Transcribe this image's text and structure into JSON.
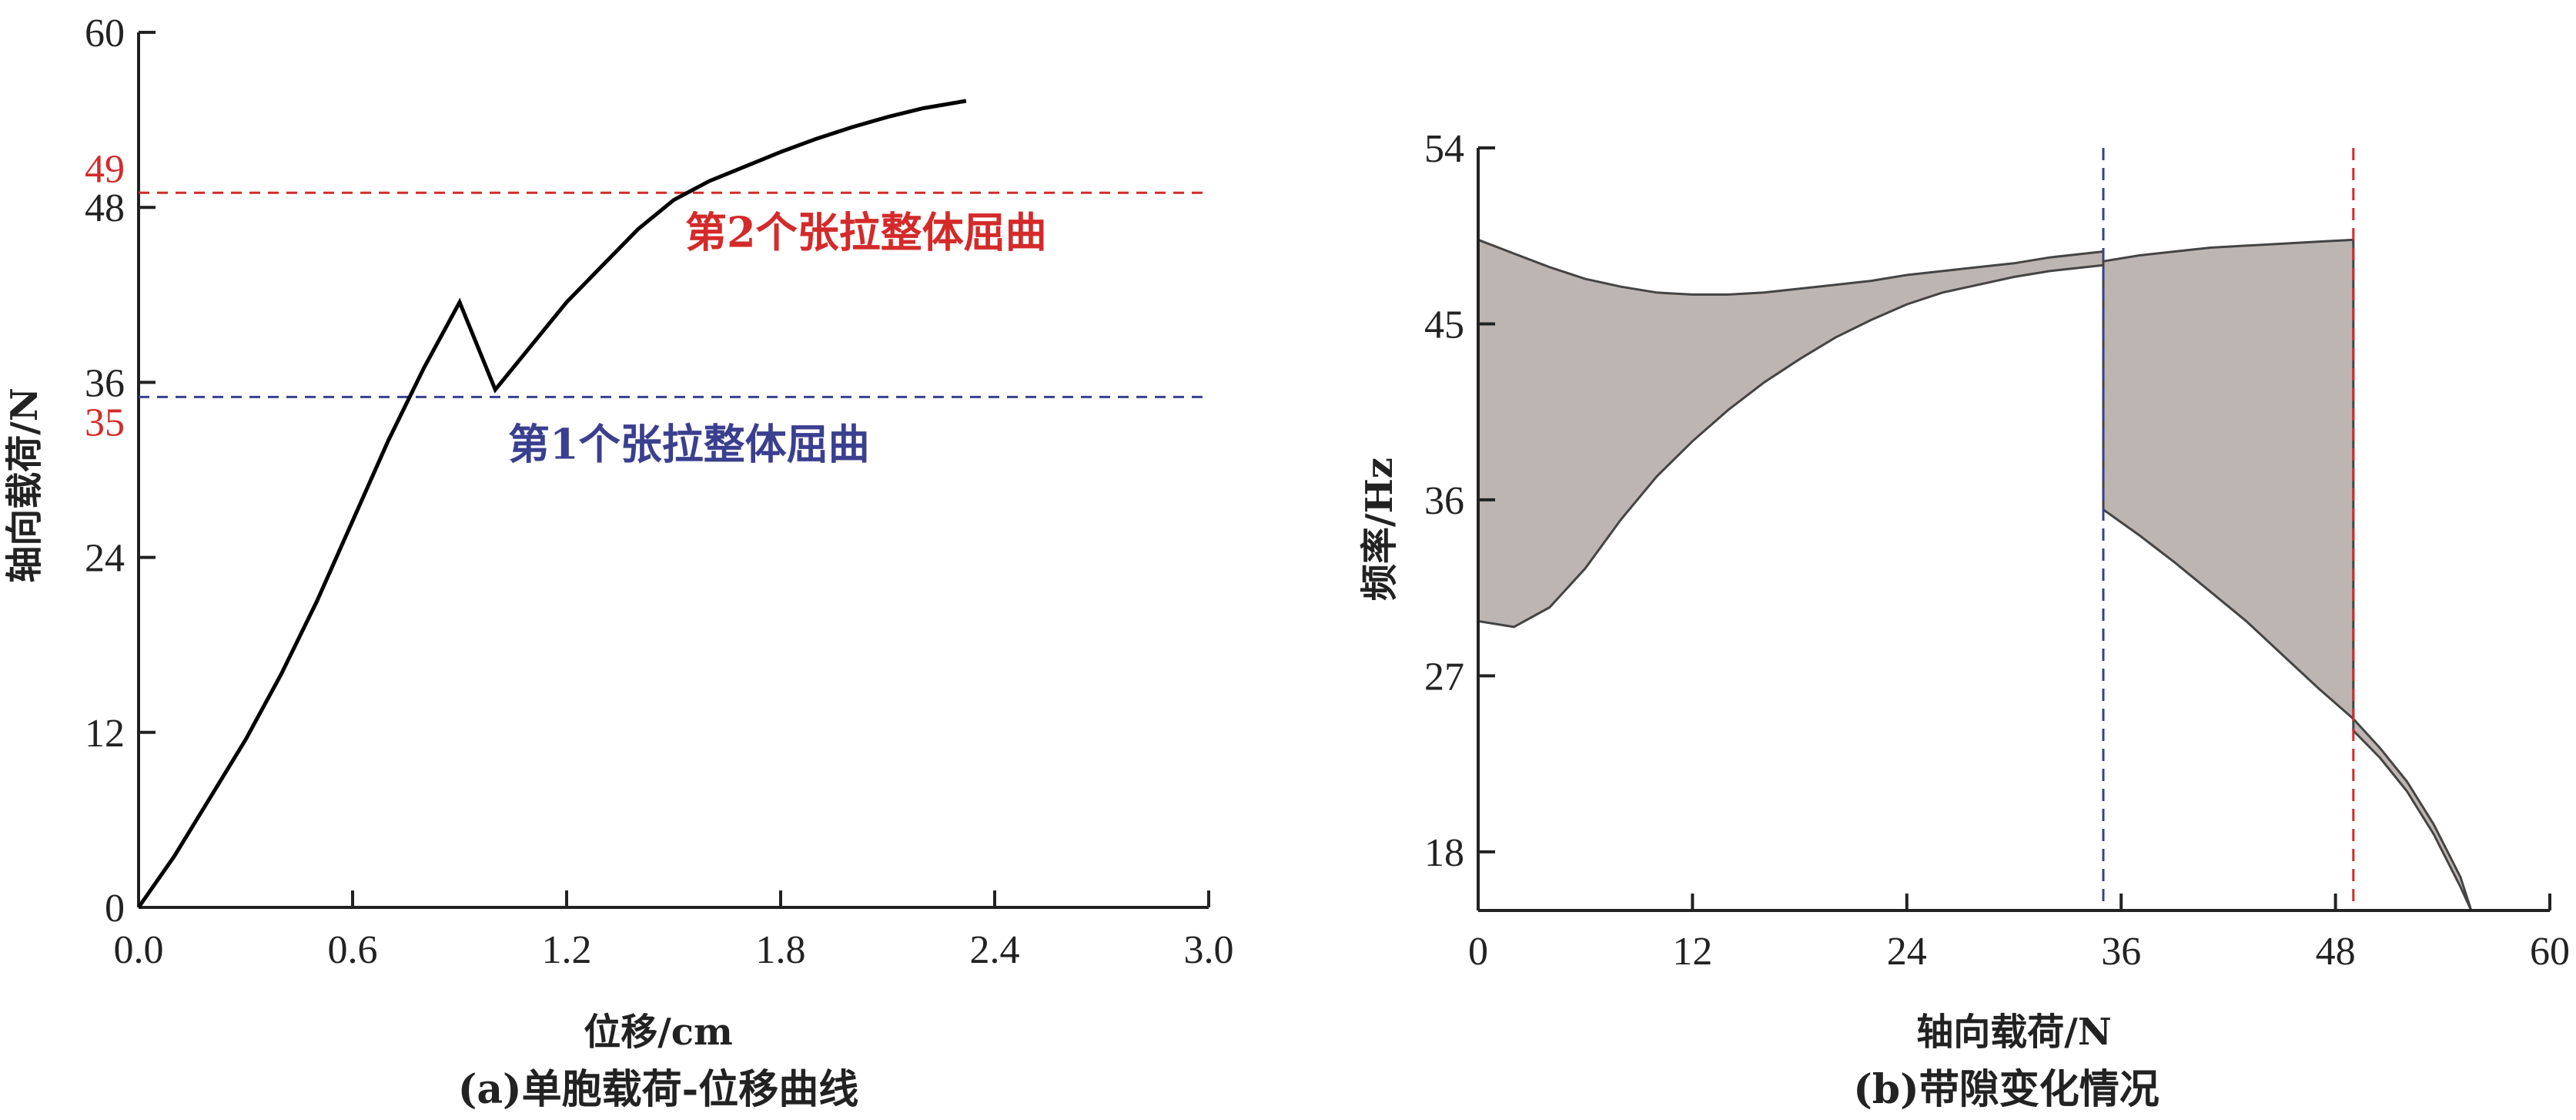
{
  "chart_data": [
    {
      "type": "line",
      "xlabel": "位移/cm",
      "ylabel": "轴向载荷/N",
      "caption": "(a)单胞载荷-位移曲线",
      "xlim": [
        0.0,
        3.0
      ],
      "ylim": [
        0,
        60
      ],
      "xticks": [
        "0.0",
        "0.6",
        "1.2",
        "1.8",
        "2.4",
        "3.0"
      ],
      "yticks": [
        "0",
        "12",
        "24",
        "36",
        "48",
        "60"
      ],
      "series": [
        {
          "x": [
            0.0,
            0.1,
            0.2,
            0.3,
            0.4,
            0.5,
            0.6,
            0.7,
            0.8,
            0.9,
            1.0,
            1.1,
            1.2,
            1.3,
            1.4,
            1.5,
            1.6,
            1.7,
            1.8,
            1.9,
            2.0,
            2.1,
            2.2,
            2.32
          ],
          "y": [
            0,
            3.5,
            7.5,
            11.5,
            16,
            21,
            26.5,
            32,
            37,
            41.5,
            35.5,
            38.5,
            41.5,
            44,
            46.5,
            48.5,
            49.8,
            50.8,
            51.8,
            52.7,
            53.5,
            54.2,
            54.8,
            55.3
          ],
          "color": "#000000"
        }
      ],
      "hlines": [
        {
          "y": 35,
          "label": "第1个张拉整体屈曲",
          "color": "#3a3f8f"
        },
        {
          "y": 49,
          "label": "第2个张拉整体屈曲",
          "color": "#d42a2a"
        }
      ],
      "extra_yticks": [
        {
          "value": 35,
          "label": "35",
          "color": "#d42a2a"
        },
        {
          "value": 49,
          "label": "49",
          "color": "#d42a2a"
        }
      ]
    },
    {
      "type": "area",
      "xlabel": "轴向载荷/N",
      "ylabel": "频率/Hz",
      "caption": "(b)带隙变化情况",
      "xlim": [
        0,
        60
      ],
      "ylim": [
        15,
        54
      ],
      "xticks": [
        "0",
        "12",
        "24",
        "36",
        "48",
        "60"
      ],
      "yticks": [
        "18",
        "27",
        "36",
        "45",
        "54"
      ],
      "bands": [
        {
          "x": [
            0,
            2,
            4,
            6,
            8,
            10,
            12,
            14,
            16,
            18,
            20,
            22,
            24,
            26,
            28,
            30,
            32,
            35
          ],
          "upper": [
            49.3,
            48.6,
            47.9,
            47.3,
            46.9,
            46.6,
            46.5,
            46.5,
            46.6,
            46.8,
            47.0,
            47.2,
            47.5,
            47.7,
            47.9,
            48.1,
            48.4,
            48.7
          ],
          "lower": [
            29.8,
            29.5,
            30.5,
            32.5,
            35.0,
            37.2,
            39.0,
            40.6,
            42.0,
            43.2,
            44.3,
            45.2,
            46.0,
            46.6,
            47.0,
            47.4,
            47.7,
            48.0
          ]
        },
        {
          "x": [
            35,
            37,
            39,
            41,
            43,
            45,
            47,
            49
          ],
          "upper": [
            48.2,
            48.5,
            48.7,
            48.9,
            49.0,
            49.1,
            49.2,
            49.3
          ],
          "lower": [
            35.5,
            34.2,
            32.8,
            31.3,
            29.8,
            28.1,
            26.4,
            24.8
          ]
        },
        {
          "x": [
            49,
            50.5,
            52,
            53.5,
            55,
            55.6
          ],
          "upper": [
            24.8,
            23.3,
            21.6,
            19.4,
            16.7,
            15.0
          ],
          "lower": [
            24.2,
            22.8,
            21.1,
            18.9,
            16.2,
            15.0
          ]
        }
      ],
      "fill_color": "#bdb5b2",
      "edge_color": "#444444",
      "vlines": [
        {
          "x": 35,
          "color": "#3a3f8f"
        },
        {
          "x": 49,
          "color": "#d42a2a"
        }
      ]
    }
  ]
}
